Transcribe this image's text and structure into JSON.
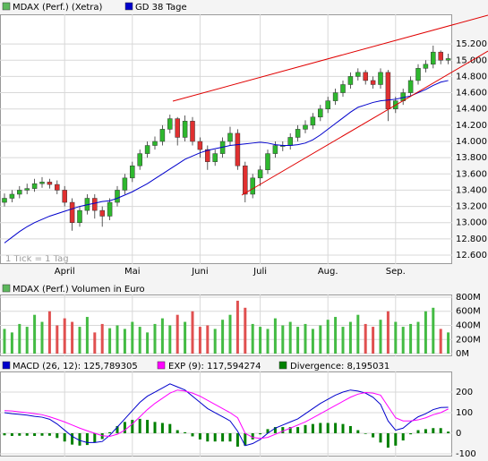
{
  "chart_data": [
    {
      "type": "candlestick",
      "note": "1 Tick = 1 Tag",
      "categories": [
        null,
        null,
        null,
        null,
        null,
        null,
        null,
        null,
        "April",
        null,
        null,
        null,
        null,
        null,
        null,
        null,
        null,
        "Mai",
        null,
        null,
        null,
        null,
        null,
        null,
        null,
        null,
        "Juni",
        null,
        null,
        null,
        null,
        null,
        null,
        null,
        "Juli",
        null,
        null,
        null,
        null,
        null,
        null,
        null,
        null,
        "Aug.",
        null,
        null,
        null,
        null,
        null,
        null,
        null,
        null,
        "Sep.",
        null,
        null,
        null,
        null,
        null,
        null,
        null
      ],
      "series": [
        {
          "name": "MDAX (Perf.) (Xetra)",
          "color": "#5cb85c",
          "up_color": "#2eb82e",
          "down_color": "#e03030",
          "open": [
            13250,
            13300,
            13350,
            13400,
            13420,
            13480,
            13500,
            13470,
            13400,
            13250,
            13000,
            13150,
            13300,
            13150,
            13080,
            13250,
            13400,
            13550,
            13700,
            13850,
            13950,
            14000,
            14150,
            14280,
            14050,
            14250,
            14000,
            13900,
            13750,
            13850,
            14000,
            14100,
            13700,
            13350,
            13550,
            13650,
            13850,
            13950,
            13950,
            14050,
            14150,
            14200,
            14300,
            14400,
            14500,
            14600,
            14700,
            14800,
            14850,
            14750,
            14700,
            14850,
            14400,
            14500,
            14600,
            14750,
            14900,
            14950,
            15100,
            15000
          ],
          "high": [
            13360,
            13400,
            13450,
            13480,
            13540,
            13560,
            13540,
            13520,
            13450,
            13300,
            13200,
            13350,
            13350,
            13200,
            13300,
            13450,
            13600,
            13750,
            13900,
            14000,
            14060,
            14200,
            14330,
            14300,
            14320,
            14300,
            14050,
            13950,
            13900,
            14050,
            14180,
            14150,
            13750,
            13600,
            13700,
            13900,
            14000,
            14000,
            14100,
            14200,
            14260,
            14350,
            14450,
            14550,
            14650,
            14750,
            14850,
            14900,
            14880,
            14800,
            14900,
            14880,
            14550,
            14650,
            14800,
            14950,
            15000,
            15180,
            15120,
            15080
          ],
          "low": [
            13200,
            13250,
            13300,
            13350,
            13380,
            13430,
            13420,
            13350,
            13200,
            12900,
            12950,
            13100,
            13050,
            12950,
            13030,
            13200,
            13350,
            13500,
            13650,
            13800,
            13900,
            13950,
            14100,
            13950,
            14000,
            13950,
            13800,
            13650,
            13700,
            13800,
            13950,
            13650,
            13250,
            13300,
            13450,
            13600,
            13800,
            13880,
            13900,
            14000,
            14100,
            14150,
            14250,
            14350,
            14450,
            14550,
            14650,
            14750,
            14700,
            14650,
            14650,
            14250,
            14350,
            14450,
            14550,
            14700,
            14850,
            14900,
            14950,
            14950
          ],
          "close": [
            13300,
            13350,
            13400,
            13420,
            13480,
            13500,
            13470,
            13400,
            13250,
            13000,
            13150,
            13300,
            13150,
            13080,
            13250,
            13400,
            13550,
            13700,
            13850,
            13950,
            14000,
            14150,
            14280,
            14050,
            14250,
            14000,
            13900,
            13750,
            13850,
            14000,
            14100,
            13700,
            13350,
            13550,
            13650,
            13850,
            13950,
            13950,
            14050,
            14150,
            14200,
            14300,
            14400,
            14500,
            14600,
            14700,
            14800,
            14850,
            14750,
            14700,
            14850,
            14400,
            14500,
            14600,
            14750,
            14900,
            14950,
            15100,
            15000,
            15020
          ]
        },
        {
          "name": "GD 38 Tage",
          "color": "#0000cc",
          "values": [
            12750,
            12820,
            12890,
            12950,
            13000,
            13040,
            13080,
            13110,
            13140,
            13170,
            13200,
            13220,
            13240,
            13260,
            13270,
            13300,
            13340,
            13380,
            13430,
            13480,
            13540,
            13600,
            13660,
            13720,
            13780,
            13820,
            13860,
            13890,
            13910,
            13930,
            13950,
            13960,
            13970,
            13980,
            13990,
            13980,
            13960,
            13950,
            13950,
            13960,
            13980,
            14020,
            14080,
            14150,
            14220,
            14290,
            14360,
            14420,
            14450,
            14480,
            14500,
            14510,
            14520,
            14540,
            14560,
            14600,
            14640,
            14690,
            14730,
            14750
          ]
        }
      ],
      "ylim": [
        12490,
        15565
      ],
      "yticks": [
        {
          "value": 12600,
          "label": "12.600"
        },
        {
          "value": 12800,
          "label": "12.800"
        },
        {
          "value": 13000,
          "label": "13.000"
        },
        {
          "value": 13200,
          "label": "13.200"
        },
        {
          "value": 13400,
          "label": "13.400"
        },
        {
          "value": 13600,
          "label": "13.600"
        },
        {
          "value": 13800,
          "label": "13.800"
        },
        {
          "value": 14000,
          "label": "14.000"
        },
        {
          "value": 14200,
          "label": "14.200"
        },
        {
          "value": 14400,
          "label": "14.400"
        },
        {
          "value": 14600,
          "label": "14.600"
        },
        {
          "value": 14800,
          "label": "14.800"
        },
        {
          "value": 15000,
          "label": "15.000"
        },
        {
          "value": 15200,
          "label": "15.200"
        }
      ],
      "grid": true
    },
    {
      "type": "bar",
      "title": "MDAX (Perf.) Volumen in Euro",
      "color": "#5cb85c",
      "up_color": "#44bb44",
      "down_color": "#e05050",
      "values": [
        350,
        300,
        420,
        380,
        550,
        450,
        600,
        400,
        500,
        450,
        380,
        520,
        300,
        420,
        360,
        400,
        350,
        450,
        380,
        300,
        420,
        500,
        400,
        550,
        450,
        600,
        380,
        400,
        350,
        480,
        550,
        750,
        650,
        420,
        380,
        350,
        500,
        400,
        450,
        380,
        420,
        350,
        400,
        480,
        520,
        380,
        450,
        550,
        420,
        380,
        480,
        600,
        450,
        380,
        420,
        450,
        600,
        650,
        350,
        300
      ],
      "ylim": [
        -38,
        838
      ],
      "yticks": [
        {
          "value": 0,
          "label": "0M"
        },
        {
          "value": 200,
          "label": "200M"
        },
        {
          "value": 400,
          "label": "400M"
        },
        {
          "value": 600,
          "label": "600M"
        },
        {
          "value": 800,
          "label": "800M"
        }
      ],
      "grid": true
    },
    {
      "type": "line",
      "series": [
        {
          "name": "MACD (26, 12): 125,789305",
          "color": "#0000cc",
          "values": [
            100,
            95,
            92,
            88,
            82,
            78,
            68,
            45,
            15,
            -15,
            -35,
            -45,
            -45,
            -40,
            -10,
            30,
            70,
            110,
            150,
            180,
            200,
            220,
            240,
            225,
            210,
            180,
            150,
            120,
            100,
            80,
            60,
            10,
            -60,
            -50,
            -30,
            0,
            25,
            40,
            55,
            70,
            95,
            120,
            145,
            165,
            185,
            200,
            210,
            205,
            195,
            175,
            140,
            60,
            15,
            25,
            55,
            80,
            95,
            115,
            125,
            126
          ]
        },
        {
          "name": "EXP (9): 117,594274",
          "color": "#ff00ff",
          "values": [
            110,
            108,
            104,
            100,
            95,
            90,
            80,
            68,
            55,
            40,
            25,
            12,
            0,
            -12,
            -15,
            -5,
            15,
            45,
            80,
            115,
            145,
            170,
            195,
            210,
            205,
            195,
            180,
            160,
            140,
            120,
            100,
            75,
            0,
            -20,
            -25,
            -20,
            -5,
            10,
            25,
            40,
            55,
            75,
            95,
            115,
            135,
            155,
            175,
            190,
            198,
            195,
            185,
            130,
            75,
            60,
            60,
            65,
            75,
            90,
            100,
            118
          ]
        },
        {
          "name": "Divergence: 8,195031",
          "color": "#008000",
          "style": "bar",
          "values": [
            -10,
            -13,
            -12,
            -12,
            -13,
            -12,
            -12,
            -23,
            -40,
            -55,
            -60,
            -57,
            -45,
            -28,
            5,
            35,
            55,
            65,
            70,
            65,
            55,
            50,
            45,
            15,
            5,
            -15,
            -30,
            -40,
            -40,
            -40,
            -40,
            -65,
            -60,
            -30,
            -5,
            20,
            30,
            30,
            30,
            30,
            40,
            45,
            50,
            50,
            50,
            45,
            35,
            15,
            -3,
            -20,
            -45,
            -70,
            -60,
            -35,
            -5,
            15,
            20,
            25,
            25,
            8
          ]
        }
      ],
      "ylim": [
        -113,
        300
      ],
      "yticks": [
        -100,
        0,
        100,
        200
      ],
      "grid": true
    }
  ]
}
